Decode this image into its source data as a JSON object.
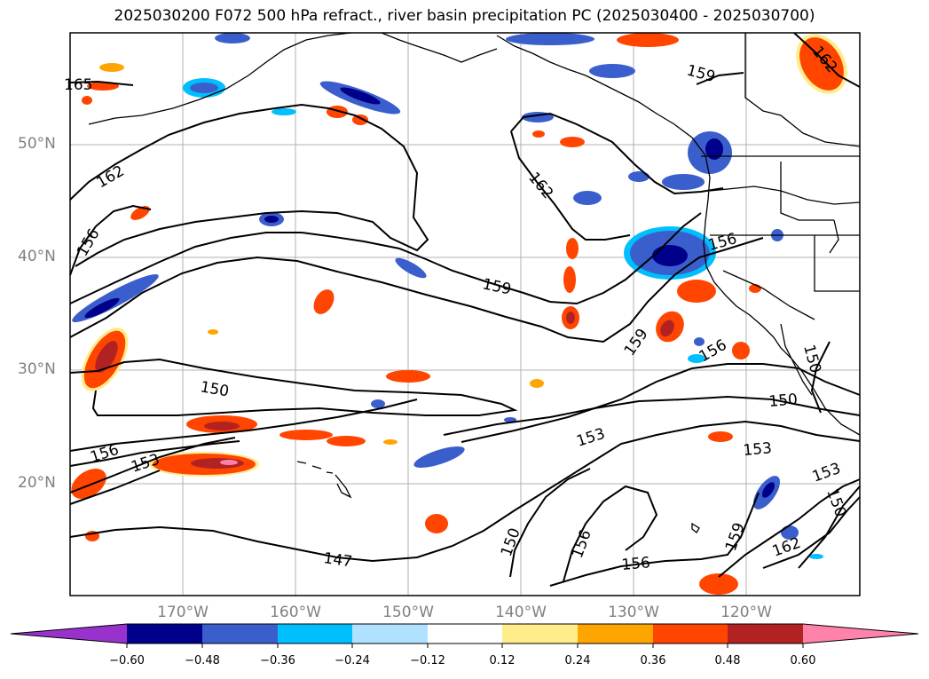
{
  "title": "2025030200 F072 500 hPa refract., river basin precipitation PC (2025030400 - 2025030700)",
  "map": {
    "latitude_labels": [
      "50°N",
      "40°N",
      "30°N",
      "20°N"
    ],
    "longitude_labels": [
      "170°W",
      "160°W",
      "150°W",
      "140°W",
      "130°W",
      "120°W"
    ],
    "contour_labels": [
      "165",
      "162",
      "156",
      "162",
      "159",
      "159",
      "156",
      "159",
      "150",
      "156",
      "150",
      "150",
      "153",
      "156",
      "153",
      "153",
      "153",
      "150",
      "147",
      "150",
      "156",
      "156",
      "159",
      "162",
      "162"
    ]
  },
  "colorbar": {
    "ticks": [
      "−0.60",
      "−0.48",
      "−0.36",
      "−0.24",
      "−0.12",
      "0.12",
      "0.24",
      "0.36",
      "0.48",
      "0.60"
    ],
    "colors": [
      "#9932cc",
      "#00008b",
      "#3a5fcd",
      "#00bfff",
      "#b0e2ff",
      "#ffffff",
      "#ffec8b",
      "#ffa500",
      "#ff4500",
      "#b22222",
      "#ff82ab"
    ]
  },
  "colors": {
    "contour": "#000000",
    "grid": "#b0b0b0",
    "coast": "#000000",
    "axis_label": "#808080"
  }
}
